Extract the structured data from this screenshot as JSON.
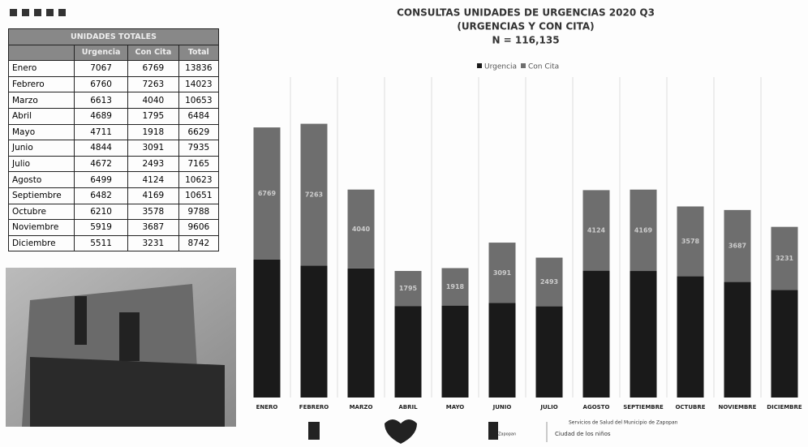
{
  "chart_data": {
    "type": "stacked-bar",
    "title": "CONSULTAS UNIDADES DE URGENCIAS 2020 Q3",
    "subtitle": "(URGENCIAS Y CON CITA)",
    "note": "N = 116,135",
    "categories": [
      "ENERO",
      "FEBRERO",
      "MARZO",
      "ABRIL",
      "MAYO",
      "JUNIO",
      "JULIO",
      "AGOSTO",
      "SEPTIEMBRE",
      "OCTUBRE",
      "NOVIEMBRE",
      "DICIEMBRE"
    ],
    "series": [
      {
        "name": "Urgencia",
        "color": "#1a1a1a",
        "values": [
          7067,
          6760,
          6613,
          4689,
          4711,
          4844,
          4672,
          6499,
          6482,
          6210,
          5919,
          5511
        ]
      },
      {
        "name": "Con Cita",
        "color": "#6e6e6e",
        "values": [
          6769,
          7263,
          4040,
          1795,
          1918,
          3091,
          2493,
          4124,
          4169,
          3578,
          3687,
          3231
        ]
      }
    ],
    "ylim": [
      0,
      16000
    ],
    "legend": "top"
  },
  "table": {
    "title": "UNIDADES TOTALES",
    "columns": [
      "Urgencia",
      "Con Cita",
      "Total"
    ],
    "rows": [
      [
        "Enero",
        7067,
        6769,
        13836
      ],
      [
        "Febrero",
        6760,
        7263,
        14023
      ],
      [
        "Marzo",
        6613,
        4040,
        10653
      ],
      [
        "Abril",
        4689,
        1795,
        6484
      ],
      [
        "Mayo",
        4711,
        1918,
        6629
      ],
      [
        "Junio",
        4844,
        3091,
        7935
      ],
      [
        "Julio",
        4672,
        2493,
        7165
      ],
      [
        "Agosto",
        6499,
        4124,
        10623
      ],
      [
        "Septiembre",
        6482,
        4169,
        10651
      ],
      [
        "Octubre",
        6210,
        3578,
        9788
      ],
      [
        "Noviembre",
        5919,
        3687,
        9606
      ],
      [
        "Diciembre",
        5511,
        3231,
        8742
      ]
    ]
  },
  "footer": {
    "logo1": "Servicios de Salud del Municipio de Zapopan",
    "logo2": "Zapopan",
    "logo3": "Ciudad de los niños"
  }
}
